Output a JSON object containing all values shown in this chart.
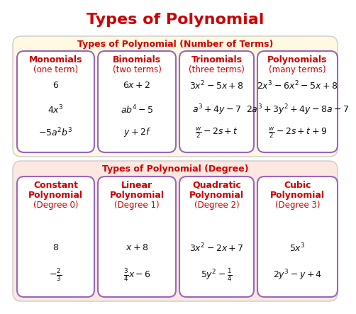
{
  "title": "Types of Polynomial",
  "title_color": "#cc0000",
  "bg_color": "#ffffff",
  "section1_bg": "#fef9e0",
  "section2_bg": "#fce8e0",
  "section1_title": "Types of Polynomial (Number of Terms)",
  "section2_title": "Types of Polynomial (Degree)",
  "section_title_color": "#cc0000",
  "card_border_color": "#9966bb",
  "card_bg": "#ffffff",
  "card_header_color": "#cc0000",
  "card_body_color": "#111111",
  "top_cards": [
    {
      "header1": "Monomials",
      "header2": "(one term)",
      "lines": [
        "6",
        "$4x^{3}$",
        "$-5a^{2}b^{3}$"
      ]
    },
    {
      "header1": "Binomials",
      "header2": "(two terms)",
      "lines": [
        "$6x+2$",
        "$ab^{4}-5$",
        "$y+2f$"
      ]
    },
    {
      "header1": "Trinomials",
      "header2": "(three terms)",
      "lines": [
        "$3x^{2}-5x+8$",
        "$a^{3}+4y-7$",
        "$\\frac{w}{2}-2s+t$"
      ]
    },
    {
      "header1": "Polynomials",
      "header2": "(many terms)",
      "lines": [
        "$2x^{3}-6x^{2}-5x+8$",
        "$2a^{3}+3y^{2}+4y-8a-7$",
        "$\\frac{w}{2}-2s+t+9$"
      ]
    }
  ],
  "bottom_cards": [
    {
      "header1": "Constant",
      "header2": "Polynomial",
      "header3": "(Degree 0)",
      "lines": [
        "$8$",
        "$-\\frac{2}{3}$"
      ]
    },
    {
      "header1": "Linear",
      "header2": "Polynomial",
      "header3": "(Degree 1)",
      "lines": [
        "$x+8$",
        "$\\frac{3}{4}x-6$"
      ]
    },
    {
      "header1": "Quadratic",
      "header2": "Polynomial",
      "header3": "(Degree 2)",
      "lines": [
        "$3x^{2}-2x+7$",
        "$5y^{2}-\\frac{1}{4}$"
      ]
    },
    {
      "header1": "Cubic",
      "header2": "Polynomial",
      "header3": "(Degree 3)",
      "lines": [
        "$5x^{3}$",
        "$2y^{3}-y+4$"
      ]
    }
  ]
}
